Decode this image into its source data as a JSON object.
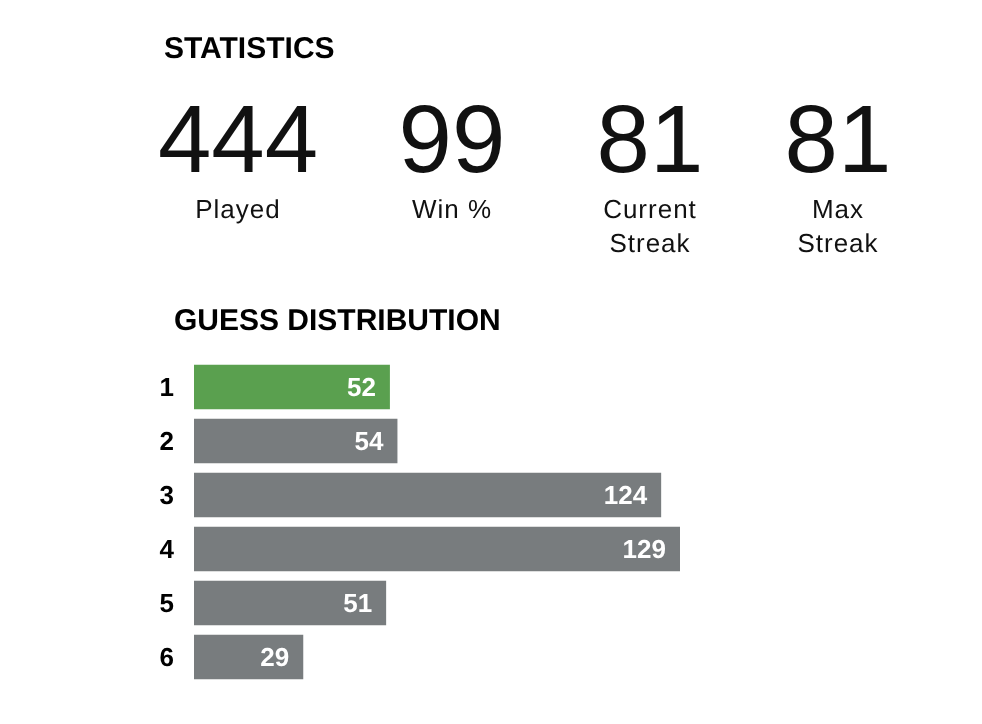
{
  "chart_data": [
    {
      "type": "other",
      "title": "STATISTICS",
      "categories": [
        "Played",
        "Win %",
        "Current Streak",
        "Max Streak"
      ],
      "values": [
        444,
        99,
        81,
        81
      ],
      "data_labels": true
    },
    {
      "type": "bar",
      "orientation": "horizontal",
      "title": "GUESS DISTRIBUTION",
      "categories": [
        "1",
        "2",
        "3",
        "4",
        "5",
        "6"
      ],
      "values": [
        52,
        54,
        124,
        129,
        51,
        29
      ],
      "colors": [
        "#5aa04f",
        "#787c7e",
        "#787c7e",
        "#787c7e",
        "#787c7e",
        "#787c7e"
      ],
      "data_labels": true
    }
  ]
}
